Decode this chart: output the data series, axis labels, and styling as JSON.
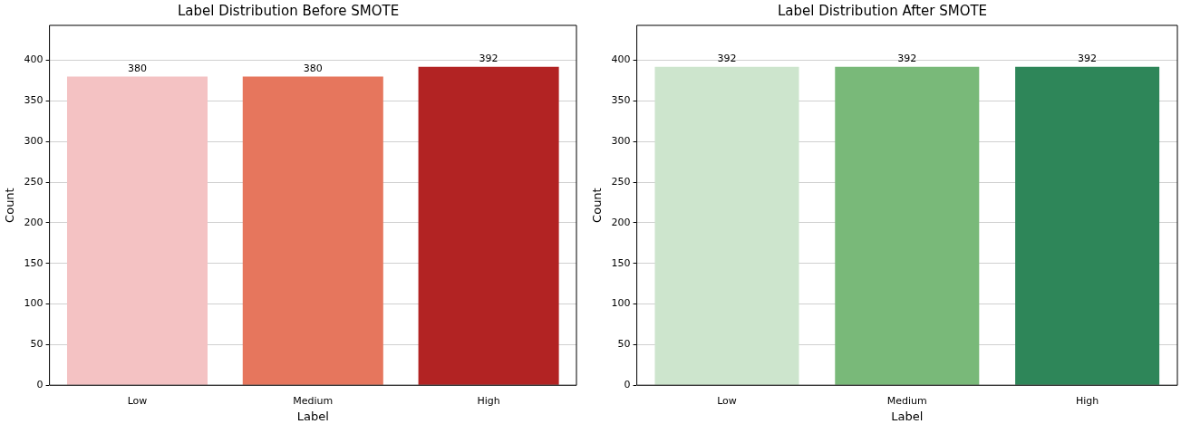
{
  "chart_data": [
    {
      "type": "bar",
      "title": "Label Distribution Before SMOTE",
      "xlabel": "Label",
      "ylabel": "Count",
      "categories": [
        "Low",
        "Medium",
        "High"
      ],
      "values": [
        380,
        380,
        392
      ],
      "colors": [
        "#f4c2c3",
        "#e6765d",
        "#b22323"
      ],
      "ylim": [
        0,
        443
      ],
      "yticks": [
        0,
        50,
        100,
        150,
        200,
        250,
        300,
        350,
        400
      ],
      "grid": "y",
      "data_labels": true
    },
    {
      "type": "bar",
      "title": "Label Distribution After SMOTE",
      "xlabel": "Label",
      "ylabel": "Count",
      "categories": [
        "Low",
        "Medium",
        "High"
      ],
      "values": [
        392,
        392,
        392
      ],
      "colors": [
        "#cde5cd",
        "#79b979",
        "#2e8659"
      ],
      "ylim": [
        0,
        443
      ],
      "yticks": [
        0,
        50,
        100,
        150,
        200,
        250,
        300,
        350,
        400
      ],
      "grid": "y",
      "data_labels": true
    }
  ]
}
